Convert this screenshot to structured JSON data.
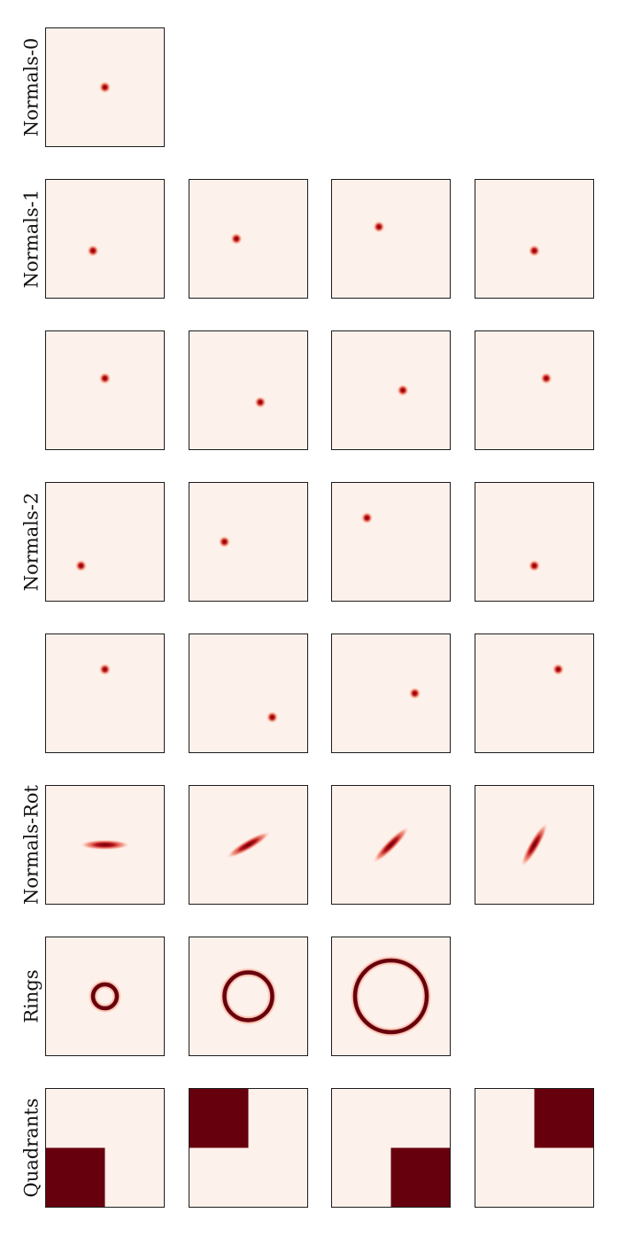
{
  "figure": {
    "background": "#fdf1ec",
    "frame_color": "#1a1a1a",
    "colormap": "Reds",
    "dark_color": "#67000d",
    "mid_color": "#d7261c"
  },
  "rows": [
    {
      "label": "Normals-0"
    },
    {
      "label": "Normals-1"
    },
    {
      "label": ""
    },
    {
      "label": "Normals-2"
    },
    {
      "label": ""
    },
    {
      "label": "Normals-Rot"
    },
    {
      "label": "Rings"
    },
    {
      "label": "Quadrants"
    }
  ],
  "chart_data": {
    "type": "heatmap",
    "panel_grid": {
      "rows": 8,
      "columns": 4,
      "axes_ticks": false,
      "grid": false
    },
    "panel_extent": {
      "x": [
        0,
        1
      ],
      "y": [
        0,
        1
      ]
    },
    "panels": [
      {
        "row": 0,
        "col": 0,
        "kind": "normal",
        "mean": [
          0.5,
          0.5
        ]
      },
      {
        "row": 1,
        "col": 0,
        "kind": "normal",
        "mean": [
          0.4,
          0.4
        ]
      },
      {
        "row": 1,
        "col": 1,
        "kind": "normal",
        "mean": [
          0.4,
          0.5
        ]
      },
      {
        "row": 1,
        "col": 2,
        "kind": "normal",
        "mean": [
          0.4,
          0.6
        ]
      },
      {
        "row": 1,
        "col": 3,
        "kind": "normal",
        "mean": [
          0.5,
          0.4
        ]
      },
      {
        "row": 2,
        "col": 0,
        "kind": "normal",
        "mean": [
          0.5,
          0.6
        ]
      },
      {
        "row": 2,
        "col": 1,
        "kind": "normal",
        "mean": [
          0.6,
          0.4
        ]
      },
      {
        "row": 2,
        "col": 2,
        "kind": "normal",
        "mean": [
          0.6,
          0.5
        ]
      },
      {
        "row": 2,
        "col": 3,
        "kind": "normal",
        "mean": [
          0.6,
          0.6
        ]
      },
      {
        "row": 3,
        "col": 0,
        "kind": "normal",
        "mean": [
          0.3,
          0.3
        ]
      },
      {
        "row": 3,
        "col": 1,
        "kind": "normal",
        "mean": [
          0.3,
          0.5
        ]
      },
      {
        "row": 3,
        "col": 2,
        "kind": "normal",
        "mean": [
          0.3,
          0.7
        ]
      },
      {
        "row": 3,
        "col": 3,
        "kind": "normal",
        "mean": [
          0.5,
          0.3
        ]
      },
      {
        "row": 4,
        "col": 0,
        "kind": "normal",
        "mean": [
          0.5,
          0.7
        ]
      },
      {
        "row": 4,
        "col": 1,
        "kind": "normal",
        "mean": [
          0.7,
          0.3
        ]
      },
      {
        "row": 4,
        "col": 2,
        "kind": "normal",
        "mean": [
          0.7,
          0.5
        ]
      },
      {
        "row": 4,
        "col": 3,
        "kind": "normal",
        "mean": [
          0.7,
          0.7
        ]
      },
      {
        "row": 5,
        "col": 0,
        "kind": "rotated_normal",
        "angle_deg": 0
      },
      {
        "row": 5,
        "col": 1,
        "kind": "rotated_normal",
        "angle_deg": 30
      },
      {
        "row": 5,
        "col": 2,
        "kind": "rotated_normal",
        "angle_deg": 45
      },
      {
        "row": 5,
        "col": 3,
        "kind": "rotated_normal",
        "angle_deg": 60
      },
      {
        "row": 6,
        "col": 0,
        "kind": "ring",
        "radius": 0.1
      },
      {
        "row": 6,
        "col": 1,
        "kind": "ring",
        "radius": 0.2
      },
      {
        "row": 6,
        "col": 2,
        "kind": "ring",
        "radius": 0.3
      },
      {
        "row": 7,
        "col": 0,
        "kind": "quadrant",
        "quadrant": "bottom-left"
      },
      {
        "row": 7,
        "col": 1,
        "kind": "quadrant",
        "quadrant": "top-left"
      },
      {
        "row": 7,
        "col": 2,
        "kind": "quadrant",
        "quadrant": "bottom-right"
      },
      {
        "row": 7,
        "col": 3,
        "kind": "quadrant",
        "quadrant": "top-right"
      }
    ]
  }
}
